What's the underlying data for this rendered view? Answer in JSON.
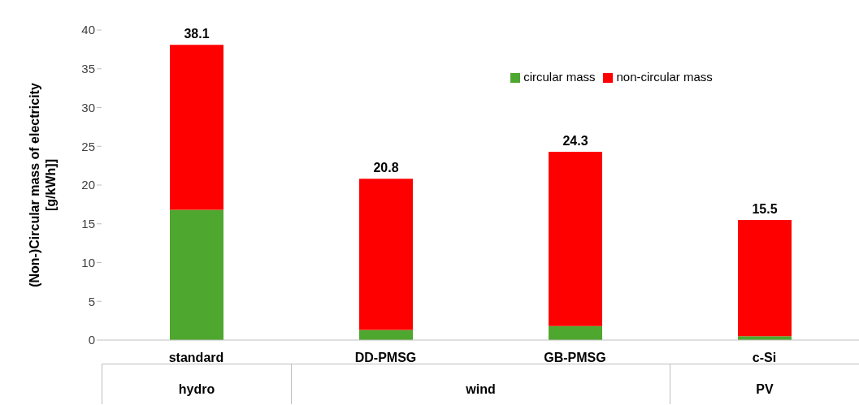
{
  "chart_data": {
    "type": "bar",
    "stacked": true,
    "ylabel": "(Non-)Circular mass of  electricity [g/kWh]]",
    "categories": [
      "standard",
      "DD-PMSG",
      "GB-PMSG",
      "c-Si"
    ],
    "series": [
      {
        "name": "circular mass",
        "color": "#4ea72e",
        "values": [
          16.8,
          1.3,
          1.8,
          0.5
        ]
      },
      {
        "name": "non-circular mass",
        "color": "#ff0000",
        "values": [
          21.3,
          19.5,
          22.5,
          15.0
        ]
      }
    ],
    "totals": [
      "38.1",
      "20.8",
      "24.3",
      "15.5"
    ],
    "ylim": [
      0,
      40
    ],
    "yticks": [
      0,
      5,
      10,
      15,
      20,
      25,
      30,
      35,
      40
    ],
    "grid": false,
    "legend": "top",
    "annotations": [
      "hydro",
      "wind",
      "PV"
    ]
  }
}
